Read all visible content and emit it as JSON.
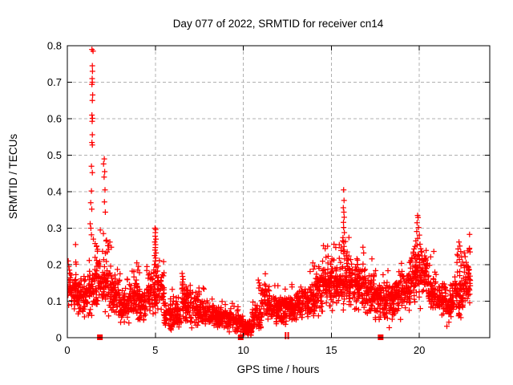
{
  "window": {
    "background": "#ffffff"
  },
  "chart_data": {
    "type": "scatter",
    "title": "Day 077 of 2022, SRMTID for receiver cn14",
    "xlabel": "GPS time / hours",
    "ylabel": "SRMTID / TECUs",
    "xlim": [
      0,
      24
    ],
    "ylim": [
      0,
      0.8
    ],
    "grid": true,
    "legend": "none",
    "marker": "plus",
    "marker_color": "#ff0000",
    "grid_color": "#b0b0b0",
    "axis_color": "#000000",
    "xticks": [
      {
        "v": 0,
        "label": "0"
      },
      {
        "v": 5,
        "label": "5"
      },
      {
        "v": 10,
        "label": "10"
      },
      {
        "v": 15,
        "label": "15"
      },
      {
        "v": 20,
        "label": "20"
      }
    ],
    "yticks": [
      {
        "v": 0.0,
        "label": "0"
      },
      {
        "v": 0.1,
        "label": "0.1"
      },
      {
        "v": 0.2,
        "label": "0.2"
      },
      {
        "v": 0.3,
        "label": "0.3"
      },
      {
        "v": 0.4,
        "label": "0.4"
      },
      {
        "v": 0.5,
        "label": "0.5"
      },
      {
        "v": 0.6,
        "label": "0.6"
      },
      {
        "v": 0.7,
        "label": "0.7"
      },
      {
        "v": 0.8,
        "label": "0.8"
      }
    ],
    "outlier_points": [
      [
        0.05,
        0.21
      ],
      [
        0.08,
        0.195
      ],
      [
        0.12,
        0.185
      ],
      [
        1.4,
        0.79
      ],
      [
        1.46,
        0.785
      ],
      [
        1.42,
        0.745
      ],
      [
        1.43,
        0.73
      ],
      [
        1.41,
        0.71
      ],
      [
        1.42,
        0.7
      ],
      [
        1.4,
        0.694
      ],
      [
        1.44,
        0.665
      ],
      [
        1.42,
        0.65
      ],
      [
        1.4,
        0.61
      ],
      [
        1.43,
        0.601
      ],
      [
        1.41,
        0.593
      ],
      [
        1.42,
        0.556
      ],
      [
        1.4,
        0.535
      ],
      [
        1.42,
        0.528
      ],
      [
        1.37,
        0.47
      ],
      [
        1.42,
        0.452
      ],
      [
        1.37,
        0.402
      ],
      [
        1.33,
        0.37
      ],
      [
        1.39,
        0.352
      ],
      [
        1.3,
        0.312
      ],
      [
        1.34,
        0.3
      ],
      [
        1.37,
        0.282
      ],
      [
        1.48,
        0.27
      ],
      [
        1.58,
        0.258
      ],
      [
        1.66,
        0.25
      ],
      [
        1.72,
        0.242
      ],
      [
        2.1,
        0.49
      ],
      [
        2.06,
        0.476
      ],
      [
        2.12,
        0.455
      ],
      [
        2.09,
        0.44
      ],
      [
        2.14,
        0.405
      ],
      [
        2.11,
        0.372
      ],
      [
        2.16,
        0.344
      ],
      [
        2.05,
        0.285
      ],
      [
        2.2,
        0.265
      ],
      [
        2.3,
        0.252
      ],
      [
        2.42,
        0.262
      ],
      [
        2.5,
        0.248
      ],
      [
        2.35,
        0.242
      ],
      [
        2.26,
        0.235
      ],
      [
        3.95,
        0.205
      ],
      [
        4.05,
        0.195
      ],
      [
        4.0,
        0.185
      ],
      [
        4.1,
        0.178
      ],
      [
        4.98,
        0.3
      ],
      [
        5.02,
        0.296
      ],
      [
        5.0,
        0.288
      ],
      [
        4.99,
        0.278
      ],
      [
        5.03,
        0.27
      ],
      [
        4.97,
        0.262
      ],
      [
        5.01,
        0.255
      ],
      [
        5.0,
        0.247
      ],
      [
        4.98,
        0.24
      ],
      [
        5.04,
        0.232
      ],
      [
        4.96,
        0.225
      ],
      [
        5.02,
        0.218
      ],
      [
        5.0,
        0.21
      ],
      [
        4.95,
        0.2
      ],
      [
        5.05,
        0.193
      ],
      [
        4.92,
        0.178
      ],
      [
        5.08,
        0.17
      ],
      [
        6.52,
        0.176
      ],
      [
        6.55,
        0.168
      ],
      [
        6.58,
        0.16
      ],
      [
        6.54,
        0.152
      ],
      [
        6.56,
        0.144
      ],
      [
        6.53,
        0.136
      ],
      [
        6.57,
        0.128
      ],
      [
        7.72,
        0.136
      ],
      [
        10.85,
        0.158
      ],
      [
        10.9,
        0.15
      ],
      [
        10.95,
        0.143
      ],
      [
        10.88,
        0.136
      ],
      [
        13.95,
        0.205
      ],
      [
        14.05,
        0.196
      ],
      [
        14.55,
        0.252
      ],
      [
        14.65,
        0.244
      ],
      [
        15.15,
        0.256
      ],
      [
        15.25,
        0.247
      ],
      [
        15.45,
        0.255
      ],
      [
        15.55,
        0.246
      ],
      [
        15.7,
        0.405
      ],
      [
        15.72,
        0.376
      ],
      [
        15.68,
        0.356
      ],
      [
        15.71,
        0.344
      ],
      [
        15.73,
        0.33
      ],
      [
        15.69,
        0.316
      ],
      [
        15.7,
        0.302
      ],
      [
        15.74,
        0.288
      ],
      [
        15.66,
        0.274
      ],
      [
        15.7,
        0.262
      ],
      [
        15.72,
        0.25
      ],
      [
        15.68,
        0.24
      ],
      [
        15.71,
        0.23
      ],
      [
        15.9,
        0.235
      ],
      [
        16.0,
        0.224
      ],
      [
        16.1,
        0.214
      ],
      [
        19.9,
        0.335
      ],
      [
        19.93,
        0.329
      ],
      [
        19.87,
        0.315
      ],
      [
        19.95,
        0.302
      ],
      [
        19.85,
        0.291
      ],
      [
        20.0,
        0.281
      ],
      [
        19.9,
        0.272
      ],
      [
        19.8,
        0.265
      ],
      [
        20.04,
        0.256
      ],
      [
        19.76,
        0.25
      ],
      [
        19.7,
        0.243
      ],
      [
        20.1,
        0.236
      ],
      [
        19.65,
        0.23
      ],
      [
        20.15,
        0.224
      ],
      [
        19.58,
        0.216
      ],
      [
        19.5,
        0.207
      ],
      [
        22.25,
        0.262
      ],
      [
        22.3,
        0.251
      ],
      [
        22.2,
        0.243
      ],
      [
        22.35,
        0.236
      ],
      [
        22.15,
        0.228
      ],
      [
        22.4,
        0.221
      ],
      [
        22.28,
        0.214
      ],
      [
        22.45,
        0.207
      ],
      [
        22.55,
        0.232
      ],
      [
        22.6,
        0.222
      ],
      [
        22.85,
        0.245
      ],
      [
        22.88,
        0.235
      ]
    ],
    "band_profile": {
      "bin_width": 0.5,
      "bins": [
        [
          0.0,
          0.13,
          0.045,
          60
        ],
        [
          0.5,
          0.11,
          0.04,
          60
        ],
        [
          1.0,
          0.12,
          0.05,
          55
        ],
        [
          1.5,
          0.15,
          0.055,
          55
        ],
        [
          2.0,
          0.15,
          0.055,
          60
        ],
        [
          2.5,
          0.115,
          0.05,
          65
        ],
        [
          3.0,
          0.085,
          0.04,
          60
        ],
        [
          3.5,
          0.115,
          0.038,
          55
        ],
        [
          4.0,
          0.09,
          0.042,
          55
        ],
        [
          4.5,
          0.125,
          0.048,
          55
        ],
        [
          5.0,
          0.135,
          0.058,
          55
        ],
        [
          5.5,
          0.065,
          0.035,
          55
        ],
        [
          6.0,
          0.065,
          0.03,
          55
        ],
        [
          6.5,
          0.095,
          0.042,
          60
        ],
        [
          7.0,
          0.08,
          0.035,
          55
        ],
        [
          7.5,
          0.07,
          0.03,
          55
        ],
        [
          8.0,
          0.062,
          0.025,
          60
        ],
        [
          8.5,
          0.058,
          0.025,
          60
        ],
        [
          9.0,
          0.05,
          0.022,
          60
        ],
        [
          9.5,
          0.04,
          0.02,
          60
        ],
        [
          10.0,
          0.025,
          0.015,
          60
        ],
        [
          10.5,
          0.055,
          0.03,
          55
        ],
        [
          11.0,
          0.095,
          0.04,
          55
        ],
        [
          11.5,
          0.08,
          0.03,
          60
        ],
        [
          12.0,
          0.075,
          0.03,
          60
        ],
        [
          12.5,
          0.075,
          0.03,
          60
        ],
        [
          13.0,
          0.09,
          0.035,
          60
        ],
        [
          13.5,
          0.1,
          0.04,
          60
        ],
        [
          14.0,
          0.12,
          0.05,
          60
        ],
        [
          14.5,
          0.15,
          0.055,
          65
        ],
        [
          15.0,
          0.15,
          0.055,
          65
        ],
        [
          15.5,
          0.16,
          0.058,
          65
        ],
        [
          16.0,
          0.15,
          0.058,
          65
        ],
        [
          16.5,
          0.13,
          0.05,
          65
        ],
        [
          17.0,
          0.12,
          0.05,
          60
        ],
        [
          17.5,
          0.1,
          0.045,
          60
        ],
        [
          18.0,
          0.1,
          0.045,
          60
        ],
        [
          18.5,
          0.11,
          0.045,
          60
        ],
        [
          19.0,
          0.13,
          0.05,
          60
        ],
        [
          19.5,
          0.17,
          0.055,
          60
        ],
        [
          20.0,
          0.17,
          0.055,
          60
        ],
        [
          20.5,
          0.12,
          0.045,
          60
        ],
        [
          21.0,
          0.1,
          0.04,
          60
        ],
        [
          21.5,
          0.09,
          0.04,
          60
        ],
        [
          22.0,
          0.12,
          0.05,
          60
        ],
        [
          22.5,
          0.15,
          0.055,
          50
        ]
      ],
      "last_bin_width": 0.4
    },
    "zero_squares": [
      1.85,
      9.85,
      17.8
    ],
    "zero_ticks": [
      12.4,
      12.55
    ]
  }
}
